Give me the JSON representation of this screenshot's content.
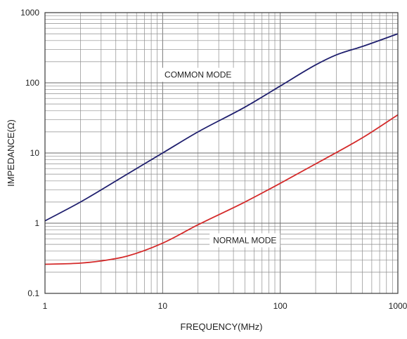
{
  "chart_data": {
    "type": "line",
    "title": "",
    "xlabel": "FREQUENCY(MHz)",
    "ylabel": "IMPEDANCE(Ω)",
    "x_scale": "log",
    "y_scale": "log",
    "xlim": [
      1,
      1000
    ],
    "ylim": [
      0.1,
      1000
    ],
    "x_ticks": [
      1,
      10,
      100,
      1000
    ],
    "x_tick_labels": [
      "1",
      "10",
      "100",
      "1000"
    ],
    "y_ticks": [
      0.1,
      1,
      10,
      100,
      1000
    ],
    "y_tick_labels": [
      "0.1",
      "1",
      "10",
      "100",
      "1000"
    ],
    "grid": true,
    "series": [
      {
        "name": "COMMON MODE",
        "color": "#1f1f6e",
        "x": [
          1,
          2,
          5,
          10,
          20,
          50,
          100,
          200,
          300,
          500,
          1000
        ],
        "y": [
          1.08,
          2.0,
          5.0,
          10.0,
          20.0,
          45.0,
          90.0,
          180.0,
          250.0,
          330.0,
          500.0
        ]
      },
      {
        "name": "NORMAL MODE",
        "color": "#d42a2a",
        "x": [
          1,
          2,
          3,
          5,
          10,
          20,
          50,
          100,
          200,
          500,
          1000
        ],
        "y": [
          0.26,
          0.27,
          0.29,
          0.34,
          0.52,
          0.95,
          2.0,
          3.7,
          7.0,
          16.5,
          35.0
        ]
      }
    ],
    "annotations": [
      {
        "text": "COMMON MODE",
        "series": "COMMON MODE",
        "x": 20,
        "y": 130
      },
      {
        "text": "NORMAL MODE",
        "series": "NORMAL MODE",
        "x": 50,
        "y": 0.57
      }
    ]
  }
}
